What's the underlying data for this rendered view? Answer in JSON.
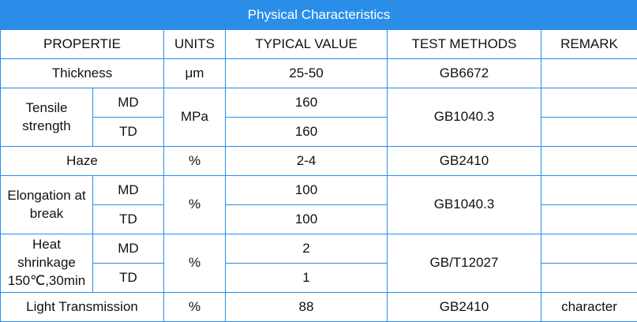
{
  "table": {
    "title": "Physical Characteristics",
    "header": [
      "PROPERTIE",
      "UNITS",
      "TYPICAL VALUE",
      "TEST METHODS",
      "REMARK"
    ],
    "rows": [
      {
        "property": "Thickness",
        "unit": "μm",
        "value": "25-50",
        "method": "GB6672"
      },
      {
        "property": "Tensile strength",
        "unit": "MPa",
        "method": "GB1040.3",
        "sub": [
          {
            "direction": "MD",
            "value": 160
          },
          {
            "direction": "TD",
            "value": 160
          }
        ]
      },
      {
        "property": "Haze",
        "unit": "%",
        "value": "2-4",
        "method": "GB2410"
      },
      {
        "property": "Elongation at break",
        "unit": "%",
        "method": "GB1040.3",
        "sub": [
          {
            "direction": "MD",
            "value": 100
          },
          {
            "direction": "TD",
            "value": 100
          }
        ]
      },
      {
        "property": "Heat shrinkage 150℃,30min",
        "unit": "%",
        "method": "GB/T12027",
        "sub": [
          {
            "direction": "MD",
            "value": 2
          },
          {
            "direction": "TD",
            "value": 1
          }
        ]
      },
      {
        "property": "Light Transmission",
        "unit": "%",
        "value": 88,
        "method": "GB2410",
        "remark": "character"
      }
    ]
  }
}
